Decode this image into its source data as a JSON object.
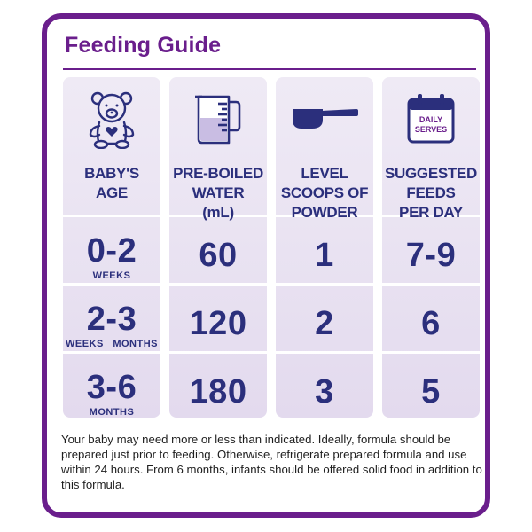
{
  "title": "Feeding Guide",
  "colors": {
    "brand": "#6a1e8c",
    "text": "#2b2f7c",
    "panel": "#e8e1f1"
  },
  "icons": [
    "teddy-bear-icon",
    "measuring-jug-icon",
    "scoop-icon",
    "calendar-icon"
  ],
  "calendar_icon_text": [
    "DAILY",
    "SERVES"
  ],
  "headers": {
    "age": [
      "BABY'S",
      "AGE"
    ],
    "water": [
      "PRE-BOILED",
      "WATER",
      "(mL)"
    ],
    "scoops": [
      "LEVEL",
      "SCOOPS OF",
      "POWDER"
    ],
    "feeds": [
      "SUGGESTED",
      "FEEDS",
      "PER DAY"
    ]
  },
  "rows": [
    {
      "age": "0-2",
      "age_units": [
        "WEEKS"
      ],
      "water": "60",
      "scoops": "1",
      "feeds": "7-9"
    },
    {
      "age": "2-3",
      "age_units": [
        "WEEKS",
        "MONTHS"
      ],
      "water": "120",
      "scoops": "2",
      "feeds": "6"
    },
    {
      "age": "3-6",
      "age_units": [
        "MONTHS"
      ],
      "water": "180",
      "scoops": "3",
      "feeds": "5"
    }
  ],
  "footnote": "Your baby may need more or less than indicated. Ideally, formula should be prepared just prior to feeding. Otherwise, refrigerate prepared formula and use within 24 hours. From 6 months, infants should be offered solid food in addition to this formula."
}
